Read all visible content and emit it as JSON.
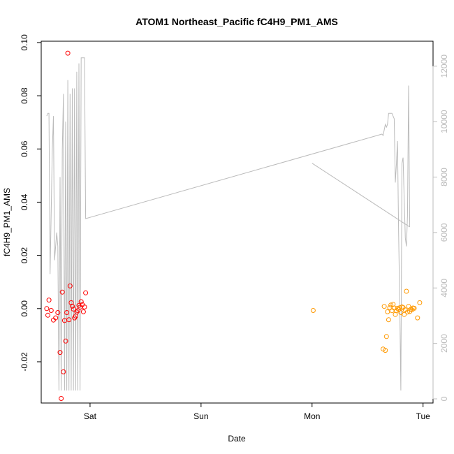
{
  "chart_data": {
    "type": "scatter",
    "title": "ATOM1 Northeast_Pacific fC4H9_PM1_AMS",
    "xlabel": "Date",
    "ylabel": "fC4H9_PM1_AMS",
    "x_ticks": [
      {
        "day": 1.0,
        "label": "Sat"
      },
      {
        "day": 2.0,
        "label": "Sun"
      },
      {
        "day": 3.0,
        "label": "Mon"
      },
      {
        "day": 4.0,
        "label": "Tue"
      }
    ],
    "xlim": [
      0.56,
      4.09
    ],
    "ylim": [
      -0.0355,
      0.1005
    ],
    "y_ticks": [
      -0.02,
      0.0,
      0.02,
      0.04,
      0.06,
      0.08,
      0.1
    ],
    "y_tick_labels": [
      "-0.02",
      "0.00",
      "0.02",
      "0.04",
      "0.06",
      "0.08",
      "0.10"
    ],
    "y2lim": [
      -150,
      12900
    ],
    "y2_ticks": [
      0,
      2000,
      4000,
      6000,
      8000,
      10000,
      12000
    ],
    "y2_tick_labels": [
      "0",
      "2000",
      "4000",
      "6000",
      "8000",
      "10000",
      "12000"
    ],
    "grid": false,
    "colors": {
      "series1": "#ff0000",
      "series2": "#ff9900",
      "altitude": "#bbbbbb"
    },
    "series": [
      {
        "marker": "circle",
        "color": "#ff0000",
        "points": [
          [
            0.61,
            0.0
          ],
          [
            0.62,
            -0.0025
          ],
          [
            0.63,
            0.0032
          ],
          [
            0.65,
            -0.0007
          ],
          [
            0.67,
            -0.0043
          ],
          [
            0.69,
            -0.0035
          ],
          [
            0.71,
            -0.0015
          ],
          [
            0.73,
            -0.0165
          ],
          [
            0.74,
            -0.0338
          ],
          [
            0.75,
            0.0062
          ],
          [
            0.76,
            -0.0238
          ],
          [
            0.77,
            -0.0045
          ],
          [
            0.78,
            -0.0122
          ],
          [
            0.79,
            -0.0015
          ],
          [
            0.8,
            0.096
          ],
          [
            0.81,
            -0.0042
          ],
          [
            0.82,
            0.0085
          ],
          [
            0.83,
            0.0022
          ],
          [
            0.84,
            0.0009
          ],
          [
            0.85,
            -0.0002
          ],
          [
            0.86,
            -0.0035
          ],
          [
            0.87,
            -0.0028
          ],
          [
            0.88,
            -0.0013
          ],
          [
            0.89,
            -0.0008
          ],
          [
            0.9,
            0.0012
          ],
          [
            0.91,
            0.0005
          ],
          [
            0.92,
            0.0026
          ],
          [
            0.93,
            0.0015
          ],
          [
            0.94,
            -0.0012
          ],
          [
            0.95,
            0.0006
          ],
          [
            0.96,
            0.0059
          ]
        ]
      },
      {
        "marker": "circle",
        "color": "#ff9900",
        "points": [
          [
            3.01,
            -0.0007
          ],
          [
            3.64,
            -0.0152
          ],
          [
            3.65,
            0.0008
          ],
          [
            3.66,
            -0.0157
          ],
          [
            3.67,
            -0.0105
          ],
          [
            3.68,
            -0.0012
          ],
          [
            3.69,
            -0.0042
          ],
          [
            3.7,
            0.0003
          ],
          [
            3.71,
            0.0013
          ],
          [
            3.72,
            -0.0008
          ],
          [
            3.73,
            0.0016
          ],
          [
            3.74,
            0.0002
          ],
          [
            3.75,
            -0.0022
          ],
          [
            3.76,
            -0.0008
          ],
          [
            3.77,
            0.0001
          ],
          [
            3.78,
            -0.0004
          ],
          [
            3.79,
            0.0003
          ],
          [
            3.8,
            -0.0015
          ],
          [
            3.81,
            0.0006
          ],
          [
            3.82,
            0.0004
          ],
          [
            3.83,
            -0.0022
          ],
          [
            3.84,
            -0.0005
          ],
          [
            3.85,
            0.0065
          ],
          [
            3.86,
            -0.0013
          ],
          [
            3.87,
            0.0008
          ],
          [
            3.88,
            -0.0011
          ],
          [
            3.89,
            -0.0003
          ],
          [
            3.9,
            -0.0005
          ],
          [
            3.91,
            0.0002
          ],
          [
            3.92,
            0.0001
          ],
          [
            3.95,
            -0.0035
          ],
          [
            3.97,
            0.0022
          ]
        ]
      }
    ],
    "altitude_line": {
      "color": "#bbbbbb",
      "points": [
        [
          0.61,
          10200
        ],
        [
          0.62,
          10300
        ],
        [
          0.63,
          10300
        ],
        [
          0.64,
          4500
        ],
        [
          0.66,
          9000
        ],
        [
          0.67,
          10200
        ],
        [
          0.68,
          5000
        ],
        [
          0.7,
          6000
        ],
        [
          0.71,
          5500
        ],
        [
          0.72,
          300
        ],
        [
          0.73,
          8000
        ],
        [
          0.74,
          300
        ],
        [
          0.75,
          9000
        ],
        [
          0.76,
          11000
        ],
        [
          0.77,
          300
        ],
        [
          0.78,
          10000
        ],
        [
          0.79,
          300
        ],
        [
          0.8,
          11500
        ],
        [
          0.81,
          300
        ],
        [
          0.82,
          11000
        ],
        [
          0.83,
          300
        ],
        [
          0.84,
          11200
        ],
        [
          0.85,
          300
        ],
        [
          0.86,
          11200
        ],
        [
          0.87,
          300
        ],
        [
          0.88,
          11800
        ],
        [
          0.89,
          300
        ],
        [
          0.9,
          12100
        ],
        [
          0.91,
          300
        ],
        [
          0.92,
          12300
        ],
        [
          0.95,
          12300
        ],
        [
          0.96,
          6500
        ],
        [
          3.63,
          9550
        ],
        [
          3.64,
          9500
        ],
        [
          3.65,
          9700
        ],
        [
          3.66,
          9900
        ],
        [
          3.67,
          9800
        ],
        [
          3.68,
          9900
        ],
        [
          3.69,
          10300
        ],
        [
          3.72,
          10300
        ],
        [
          3.73,
          10200
        ],
        [
          3.74,
          10100
        ],
        [
          3.75,
          7800
        ],
        [
          3.76,
          8500
        ],
        [
          3.77,
          9300
        ],
        [
          3.78,
          6000
        ],
        [
          3.79,
          3500
        ],
        [
          3.8,
          300
        ],
        [
          3.81,
          8500
        ],
        [
          3.82,
          8700
        ],
        [
          3.83,
          7200
        ],
        [
          3.84,
          5800
        ],
        [
          3.85,
          5500
        ],
        [
          3.86,
          6600
        ],
        [
          3.87,
          11300
        ],
        [
          3.88,
          6200
        ]
      ],
      "trailing_points": [
        [
          3.88,
          6200
        ],
        [
          3.0,
          8500
        ]
      ]
    }
  }
}
